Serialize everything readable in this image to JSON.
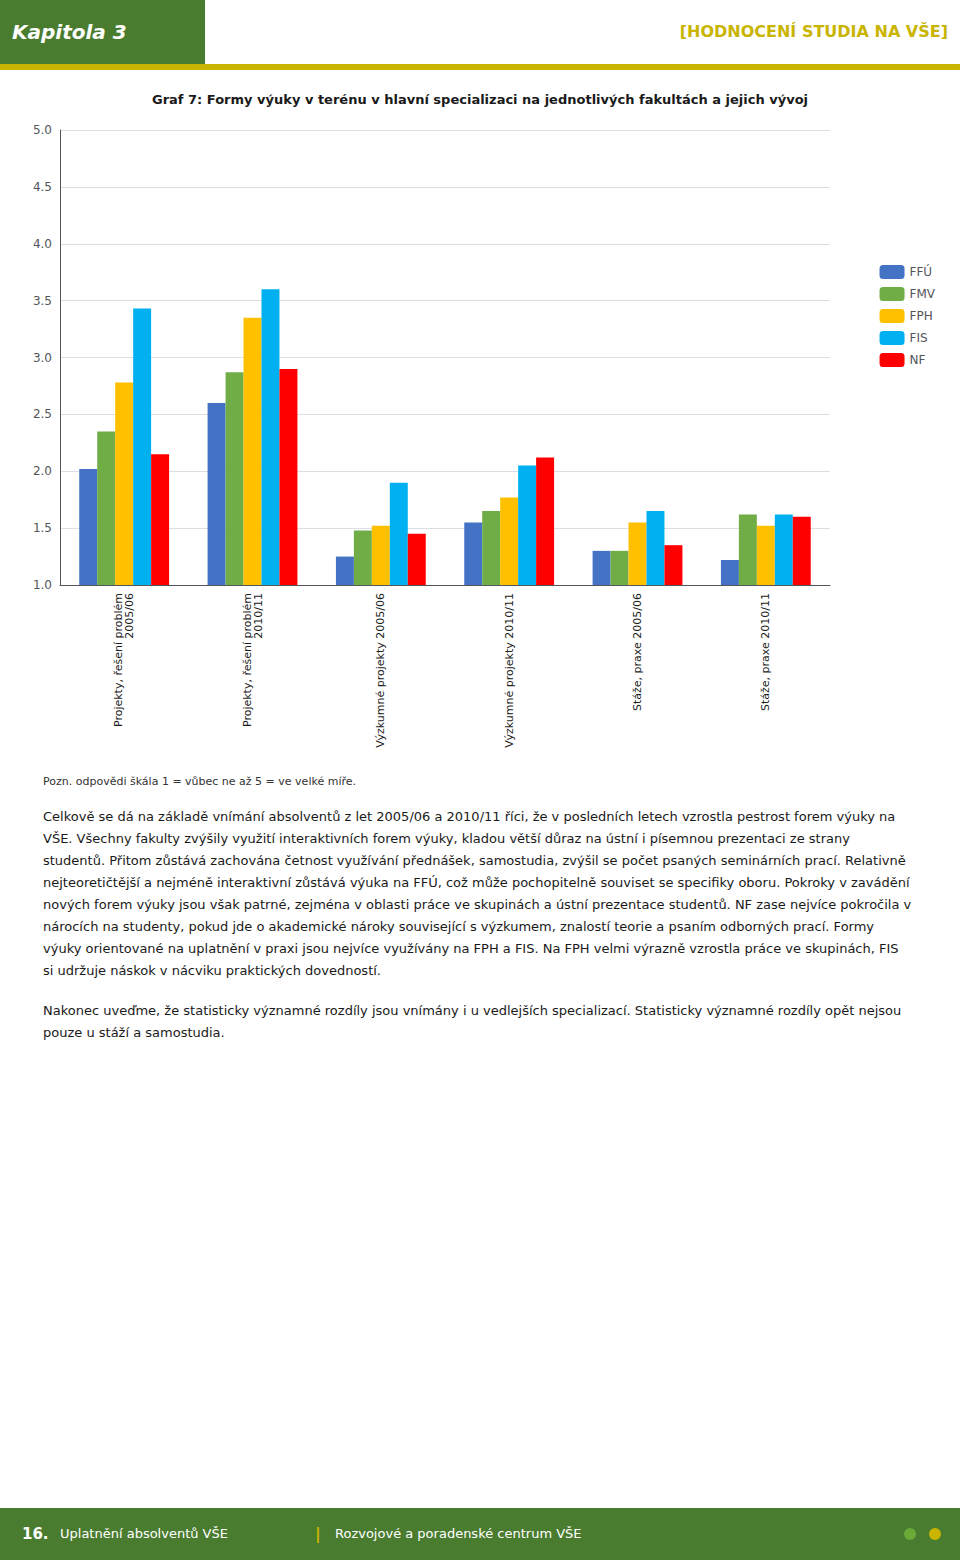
{
  "chart_data": {
    "type": "bar",
    "title": "Graf 7: Formy výuky v terénu v hlavní specializaci na jednotlivých fakultách a jejich vývoj",
    "categories": [
      "Projekty, řešení problém\n2005/06",
      "Projekty, řešení problém\n2010/11",
      "Výzkumné projekty 2005/06",
      "Výzkumné projekty 2010/11",
      "Stáže, praxe 2005/06",
      "Stáže, praxe 2010/11"
    ],
    "series": [
      {
        "name": "FFÚ",
        "color": "#4472C4",
        "values": [
          2.02,
          2.6,
          1.25,
          1.55,
          1.3,
          1.22
        ]
      },
      {
        "name": "FMV",
        "color": "#70AD47",
        "values": [
          2.35,
          2.87,
          1.48,
          1.65,
          1.3,
          1.62
        ]
      },
      {
        "name": "FPH",
        "color": "#FFC000",
        "values": [
          2.78,
          3.35,
          1.52,
          1.77,
          1.55,
          1.52
        ]
      },
      {
        "name": "FIS",
        "color": "#00B0F0",
        "values": [
          3.43,
          3.6,
          1.9,
          2.05,
          1.65,
          1.62
        ]
      },
      {
        "name": "NF",
        "color": "#FF0000",
        "values": [
          2.15,
          2.9,
          1.45,
          2.12,
          1.35,
          1.6
        ]
      }
    ],
    "ylim": [
      1.0,
      5.0
    ],
    "yticks": [
      {
        "value": 1.0,
        "label": "1.0"
      },
      1.5,
      {
        "value": 2.0,
        "label": "2.0"
      },
      2.5,
      {
        "value": 3.0,
        "label": "3.0"
      },
      3.5,
      {
        "value": 4.0,
        "label": "4.0"
      },
      4.5,
      {
        "value": 5.0,
        "label": "5.0"
      }
    ],
    "grid": true,
    "legend": "right",
    "annotations": [
      "Kapitola 3",
      "[HODNOCENÍ STUDIA NA VŠE]",
      "Pozn. odpovědi škála 1 = vůbec ne až 5 = ve velké míře.",
      "Celkově se dá na základě vnímání absolventů z let 2005/06 a 2010/11 říci, že v posledních letech vzrostla pestrost forem výuky na VŠE. Všechny fakulty zvýšily využití interaktivních forem výuky, kladou větší důraz na ústní i písemnou prezentaci ze strany studentů. Přitom zůstává zachována četnost využívání přednášek, samostudia, zvýšil se počet psaných seminárních prací. Relativně nejteoretičtější a nejméně interaktivní zůstává výuka na FFÚ, což může pochopitelně souviset se specifiky oboru. Pokroky v zavádění nových forem výuky jsou však patrné, zejména v oblasti práce ve skupinách a ústní prezentace studentů. NF zase nejvíce pokročila v nárocích na studenty, pokud jde o akademické nároky související s výzkumem, znalostí teorie a psaním odborných prací. Formy výuky orientované na uplatnění v praxi jsou nejvíce využívány na FPH a FIS. Na FPH velmi výrazně vzrostla práce ve skupinách, FIS si udržuje náskok v nácviku praktických dovedností.",
      "Nakonec uveďme, že statisticky významné rozdíly jsou vnímány i u vedlejších specializací. Statisticky významné rozdíly opět nejsou pouze u stáží a samostudia.",
      "16.",
      "Uplatnění absolventů VŠE",
      "|",
      "Rozvojové a poradenské centrum VŠE"
    ]
  }
}
